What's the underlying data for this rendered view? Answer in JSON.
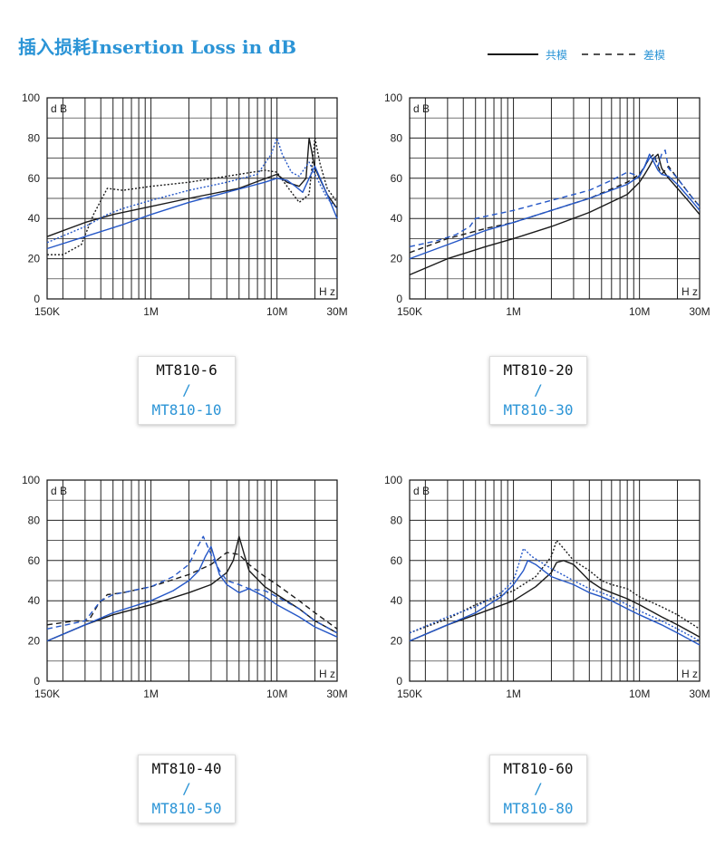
{
  "title": "插入损耗Insertion Loss in dB",
  "legend": {
    "common_mode": "共模",
    "differential_mode": "差模"
  },
  "colors": {
    "black": "#1a1a1a",
    "blue": "#2557c7",
    "accent": "#2b94d6"
  },
  "models": [
    {
      "a": "MT810-6",
      "sep": "/",
      "b": "MT810-10"
    },
    {
      "a": "MT810-20",
      "sep": "/",
      "b": "MT810-30"
    },
    {
      "a": "MT810-40",
      "sep": "/",
      "b": "MT810-50"
    },
    {
      "a": "MT810-60",
      "sep": "/",
      "b": "MT810-80"
    }
  ],
  "chart_data": [
    {
      "type": "line",
      "x_scale": "log",
      "xlim": [
        0.15,
        30
      ],
      "ylim": [
        0,
        100
      ],
      "x_ticks": [
        "150K",
        "1M",
        "10M",
        "30M"
      ],
      "y_ticks": [
        "0",
        "20",
        "40",
        "60",
        "80",
        "100"
      ],
      "xlabel": "H z",
      "ylabel": "d B",
      "grid": true,
      "series": [
        {
          "color": "black",
          "dash": "solid",
          "x": [
            0.15,
            0.3,
            0.5,
            1,
            2,
            5,
            10,
            12,
            15,
            17,
            18,
            20,
            25,
            30
          ],
          "y": [
            31,
            38,
            42,
            46,
            50,
            55,
            62,
            58,
            56,
            60,
            80,
            65,
            52,
            45
          ]
        },
        {
          "color": "black",
          "dash": "dotted",
          "x": [
            0.15,
            0.2,
            0.28,
            0.35,
            0.45,
            0.6,
            1,
            2,
            4,
            8,
            10,
            12,
            15,
            18,
            20,
            22,
            25,
            30
          ],
          "y": [
            22,
            22,
            27,
            42,
            55,
            54,
            56,
            58,
            61,
            64,
            63,
            56,
            48,
            52,
            80,
            67,
            55,
            48
          ]
        },
        {
          "color": "blue",
          "dash": "solid",
          "x": [
            0.15,
            0.3,
            0.6,
            1,
            2,
            4,
            8,
            10,
            12,
            14,
            16,
            18,
            20,
            25,
            30
          ],
          "y": [
            25,
            31,
            37,
            42,
            48,
            53,
            58,
            60,
            59,
            56,
            53,
            60,
            66,
            52,
            40
          ]
        },
        {
          "color": "blue",
          "dash": "dotted",
          "x": [
            0.15,
            0.3,
            0.45,
            0.6,
            1,
            2,
            4,
            7,
            9,
            10,
            11,
            13,
            15,
            18,
            20,
            25,
            30
          ],
          "y": [
            28,
            36,
            42,
            45,
            49,
            54,
            58,
            62,
            72,
            80,
            72,
            63,
            61,
            68,
            62,
            50,
            45
          ]
        }
      ]
    },
    {
      "type": "line",
      "x_scale": "log",
      "xlim": [
        0.15,
        30
      ],
      "ylim": [
        0,
        100
      ],
      "x_ticks": [
        "150K",
        "1M",
        "10M",
        "30M"
      ],
      "y_ticks": [
        "0",
        "20",
        "40",
        "60",
        "80",
        "100"
      ],
      "xlabel": "H z",
      "ylabel": "d B",
      "grid": true,
      "series": [
        {
          "color": "black",
          "dash": "solid",
          "x": [
            0.15,
            0.3,
            0.6,
            1,
            2,
            4,
            8,
            10,
            11,
            12,
            13,
            14,
            15,
            17,
            20,
            25,
            30
          ],
          "y": [
            12,
            20,
            26,
            30,
            36,
            43,
            52,
            58,
            62,
            66,
            70,
            72,
            65,
            60,
            55,
            48,
            42
          ]
        },
        {
          "color": "black",
          "dash": "dashed",
          "x": [
            0.15,
            0.3,
            0.6,
            1,
            2,
            4,
            8,
            10,
            11,
            12,
            13,
            14,
            15,
            17,
            20,
            25,
            30
          ],
          "y": [
            23,
            30,
            35,
            38,
            44,
            50,
            58,
            62,
            66,
            70,
            72,
            66,
            62,
            66,
            60,
            52,
            46
          ]
        },
        {
          "color": "blue",
          "dash": "solid",
          "x": [
            0.15,
            0.3,
            0.6,
            1,
            2,
            4,
            8,
            10,
            11,
            12,
            13,
            14,
            15,
            17,
            20,
            25,
            30
          ],
          "y": [
            20,
            27,
            34,
            38,
            44,
            50,
            57,
            61,
            66,
            72,
            68,
            64,
            62,
            61,
            57,
            50,
            44
          ]
        },
        {
          "color": "blue",
          "dash": "dashed",
          "x": [
            0.15,
            0.25,
            0.35,
            0.45,
            0.5,
            1,
            2,
            4,
            6,
            8,
            10,
            12,
            13,
            14,
            15,
            16,
            17,
            20,
            25,
            30
          ],
          "y": [
            26,
            29,
            32,
            36,
            40,
            44,
            49,
            54,
            59,
            63,
            61,
            70,
            71,
            66,
            72,
            74,
            65,
            60,
            52,
            46
          ]
        }
      ]
    },
    {
      "type": "line",
      "x_scale": "log",
      "xlim": [
        0.15,
        30
      ],
      "ylim": [
        0,
        100
      ],
      "x_ticks": [
        "150K",
        "1M",
        "10M",
        "30M"
      ],
      "y_ticks": [
        "0",
        "20",
        "40",
        "60",
        "80",
        "100"
      ],
      "xlabel": "H z",
      "ylabel": "d B",
      "grid": true,
      "series": [
        {
          "color": "black",
          "dash": "solid",
          "x": [
            0.15,
            0.3,
            0.5,
            1,
            2,
            3,
            4,
            4.5,
            5,
            5.5,
            6,
            8,
            10,
            15,
            20,
            30
          ],
          "y": [
            20,
            28,
            33,
            38,
            44,
            48,
            54,
            60,
            72,
            63,
            55,
            47,
            43,
            36,
            30,
            24
          ]
        },
        {
          "color": "black",
          "dash": "dashed",
          "x": [
            0.15,
            0.25,
            0.32,
            0.38,
            0.45,
            0.6,
            1,
            2,
            3,
            4,
            5,
            6,
            8,
            10,
            15,
            20,
            30
          ],
          "y": [
            28,
            30,
            30,
            38,
            43,
            44,
            47,
            53,
            58,
            64,
            63,
            58,
            52,
            48,
            40,
            34,
            26
          ]
        },
        {
          "color": "blue",
          "dash": "solid",
          "x": [
            0.15,
            0.3,
            0.5,
            1,
            1.5,
            2,
            2.4,
            2.7,
            3,
            3.5,
            4,
            5,
            6,
            8,
            10,
            15,
            20,
            30
          ],
          "y": [
            20,
            28,
            34,
            40,
            45,
            50,
            55,
            62,
            67,
            53,
            48,
            44,
            46,
            42,
            38,
            32,
            27,
            22
          ]
        },
        {
          "color": "blue",
          "dash": "dashed",
          "x": [
            0.15,
            0.3,
            0.4,
            0.5,
            1,
            1.5,
            2,
            2.3,
            2.6,
            3,
            3.5,
            4,
            5,
            6,
            8,
            10,
            15,
            20,
            30
          ],
          "y": [
            26,
            30,
            40,
            43,
            47,
            52,
            58,
            66,
            72,
            63,
            55,
            50,
            48,
            46,
            45,
            42,
            36,
            30,
            24
          ]
        }
      ]
    },
    {
      "type": "line",
      "x_scale": "log",
      "xlim": [
        0.15,
        30
      ],
      "ylim": [
        0,
        100
      ],
      "x_ticks": [
        "150K",
        "1M",
        "10M",
        "30M"
      ],
      "y_ticks": [
        "0",
        "20",
        "40",
        "60",
        "80",
        "100"
      ],
      "xlabel": "H z",
      "ylabel": "d B",
      "grid": true,
      "series": [
        {
          "color": "black",
          "dash": "solid",
          "x": [
            0.15,
            0.3,
            0.5,
            1,
            1.5,
            2,
            2.2,
            2.5,
            3,
            4,
            5,
            6,
            8,
            10,
            15,
            20,
            30
          ],
          "y": [
            20,
            28,
            33,
            40,
            47,
            54,
            59,
            60,
            58,
            50,
            46,
            44,
            41,
            38,
            32,
            28,
            22
          ]
        },
        {
          "color": "black",
          "dash": "dotted",
          "x": [
            0.15,
            0.3,
            0.5,
            1,
            1.5,
            2,
            2.2,
            2.5,
            3,
            4,
            5,
            6,
            8,
            10,
            15,
            20,
            30
          ],
          "y": [
            24,
            31,
            38,
            45,
            52,
            62,
            70,
            66,
            60,
            55,
            50,
            48,
            46,
            42,
            37,
            33,
            26
          ]
        },
        {
          "color": "blue",
          "dash": "solid",
          "x": [
            0.15,
            0.3,
            0.5,
            0.8,
            1,
            1.2,
            1.3,
            1.5,
            2,
            3,
            4,
            5,
            6,
            8,
            10,
            15,
            20,
            30
          ],
          "y": [
            20,
            28,
            34,
            42,
            48,
            55,
            60,
            58,
            52,
            48,
            44,
            42,
            40,
            36,
            33,
            28,
            24,
            18
          ]
        },
        {
          "color": "blue",
          "dash": "dotted",
          "x": [
            0.15,
            0.3,
            0.5,
            0.8,
            1,
            1.1,
            1.2,
            1.4,
            2,
            3,
            4,
            5,
            6,
            8,
            10,
            15,
            20,
            30
          ],
          "y": [
            24,
            32,
            37,
            44,
            50,
            58,
            66,
            62,
            56,
            50,
            46,
            44,
            42,
            38,
            35,
            30,
            26,
            20
          ]
        }
      ]
    }
  ]
}
